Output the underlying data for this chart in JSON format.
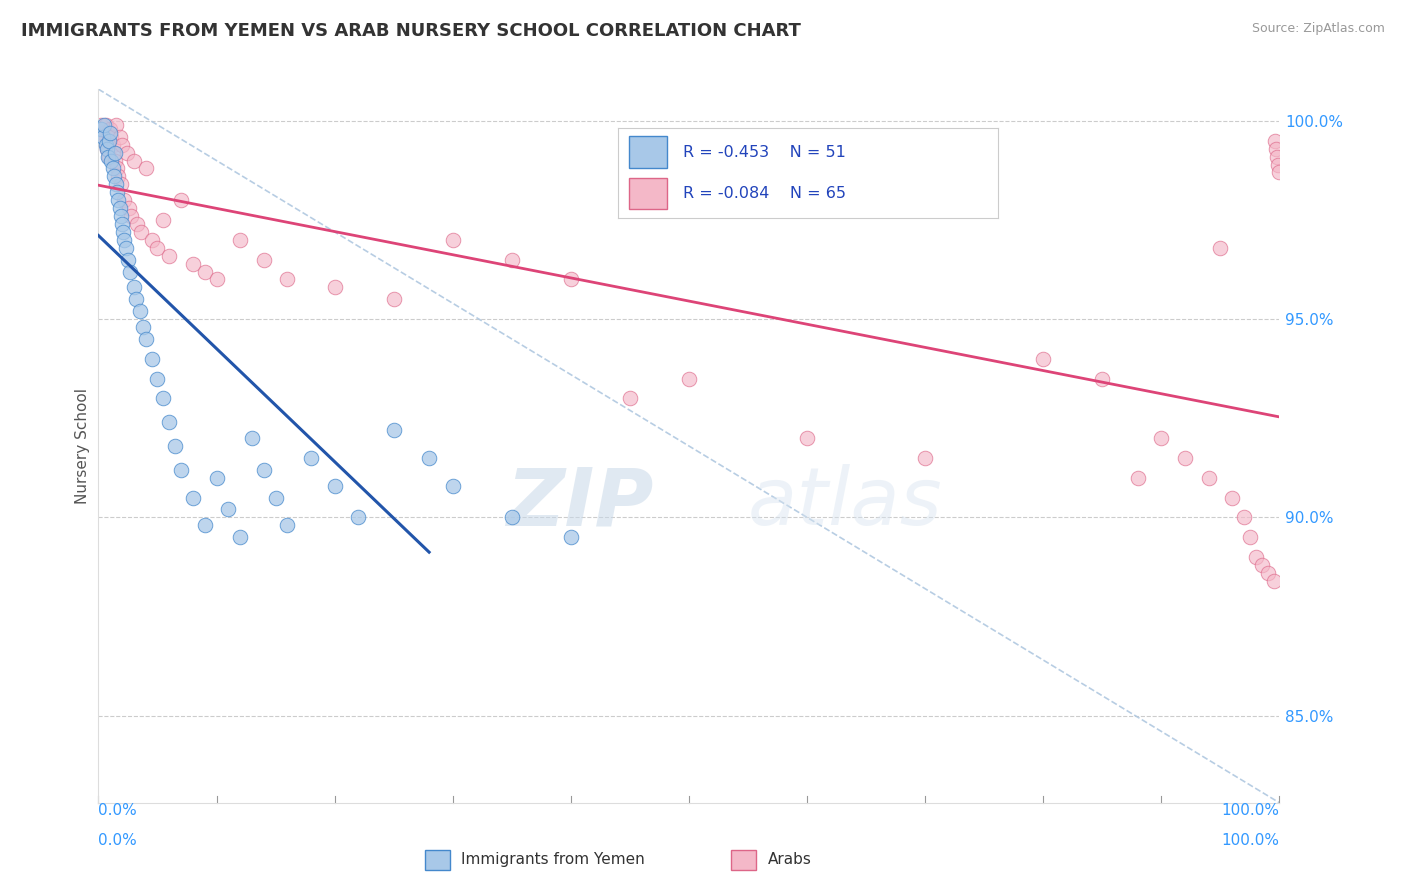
{
  "title": "IMMIGRANTS FROM YEMEN VS ARAB NURSERY SCHOOL CORRELATION CHART",
  "source": "Source: ZipAtlas.com",
  "ylabel": "Nursery School",
  "xmin": 0.0,
  "xmax": 1.0,
  "ymin": 0.828,
  "ymax": 1.008,
  "yticks_right": [
    0.85,
    0.9,
    0.95,
    1.0
  ],
  "ytick_labels_right": [
    "85.0%",
    "90.0%",
    "95.0%",
    "100.0%"
  ],
  "legend_blue_r": "-0.453",
  "legend_blue_n": "51",
  "legend_pink_r": "-0.084",
  "legend_pink_n": "65",
  "legend_label_blue": "Immigrants from Yemen",
  "legend_label_pink": "Arabs",
  "blue_fill": "#a8c8e8",
  "blue_edge": "#4488cc",
  "pink_fill": "#f4b8c8",
  "pink_edge": "#dd6688",
  "blue_line": "#2255aa",
  "pink_line": "#dd4477",
  "diag_color": "#b0c8e0",
  "grid_color": "#cccccc",
  "background_color": "#ffffff",
  "watermark": "ZIPatlas",
  "blue_scatter_x": [
    0.002,
    0.004,
    0.005,
    0.006,
    0.007,
    0.008,
    0.009,
    0.01,
    0.011,
    0.012,
    0.013,
    0.014,
    0.015,
    0.016,
    0.017,
    0.018,
    0.019,
    0.02,
    0.021,
    0.022,
    0.023,
    0.025,
    0.027,
    0.03,
    0.032,
    0.035,
    0.038,
    0.04,
    0.045,
    0.05,
    0.055,
    0.06,
    0.065,
    0.07,
    0.08,
    0.09,
    0.1,
    0.11,
    0.12,
    0.13,
    0.14,
    0.15,
    0.16,
    0.18,
    0.2,
    0.22,
    0.25,
    0.28,
    0.3,
    0.35,
    0.4
  ],
  "blue_scatter_y": [
    0.998,
    0.996,
    0.999,
    0.994,
    0.993,
    0.991,
    0.995,
    0.997,
    0.99,
    0.988,
    0.986,
    0.992,
    0.984,
    0.982,
    0.98,
    0.978,
    0.976,
    0.974,
    0.972,
    0.97,
    0.968,
    0.965,
    0.962,
    0.958,
    0.955,
    0.952,
    0.948,
    0.945,
    0.94,
    0.935,
    0.93,
    0.924,
    0.918,
    0.912,
    0.905,
    0.898,
    0.91,
    0.902,
    0.895,
    0.92,
    0.912,
    0.905,
    0.898,
    0.915,
    0.908,
    0.9,
    0.922,
    0.915,
    0.908,
    0.9,
    0.895
  ],
  "pink_scatter_x": [
    0.002,
    0.004,
    0.005,
    0.006,
    0.007,
    0.008,
    0.009,
    0.01,
    0.011,
    0.012,
    0.013,
    0.014,
    0.015,
    0.016,
    0.017,
    0.018,
    0.019,
    0.02,
    0.022,
    0.024,
    0.026,
    0.028,
    0.03,
    0.033,
    0.036,
    0.04,
    0.045,
    0.05,
    0.055,
    0.06,
    0.07,
    0.08,
    0.09,
    0.1,
    0.12,
    0.14,
    0.16,
    0.2,
    0.25,
    0.3,
    0.35,
    0.4,
    0.45,
    0.5,
    0.6,
    0.7,
    0.8,
    0.85,
    0.88,
    0.9,
    0.92,
    0.94,
    0.95,
    0.96,
    0.97,
    0.975,
    0.98,
    0.985,
    0.99,
    0.995,
    0.996,
    0.997,
    0.998,
    0.999,
    1.0
  ],
  "pink_scatter_y": [
    0.999,
    0.997,
    0.995,
    0.999,
    0.993,
    0.997,
    0.991,
    0.998,
    0.996,
    0.994,
    0.992,
    0.99,
    0.999,
    0.988,
    0.986,
    0.996,
    0.984,
    0.994,
    0.98,
    0.992,
    0.978,
    0.976,
    0.99,
    0.974,
    0.972,
    0.988,
    0.97,
    0.968,
    0.975,
    0.966,
    0.98,
    0.964,
    0.962,
    0.96,
    0.97,
    0.965,
    0.96,
    0.958,
    0.955,
    0.97,
    0.965,
    0.96,
    0.93,
    0.935,
    0.92,
    0.915,
    0.94,
    0.935,
    0.91,
    0.92,
    0.915,
    0.91,
    0.968,
    0.905,
    0.9,
    0.895,
    0.89,
    0.888,
    0.886,
    0.884,
    0.995,
    0.993,
    0.991,
    0.989,
    0.987
  ]
}
